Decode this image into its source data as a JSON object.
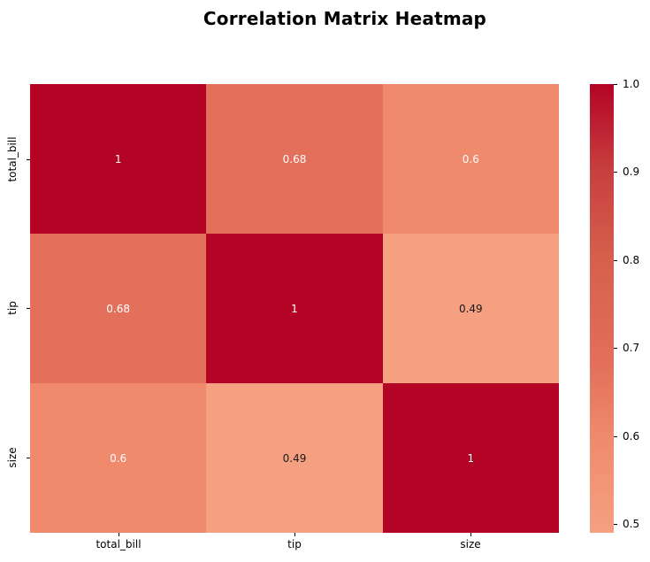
{
  "chart_data": {
    "type": "heatmap",
    "title": "Correlation Matrix Heatmap",
    "x_categories": [
      "total_bill",
      "tip",
      "size"
    ],
    "y_categories": [
      "total_bill",
      "tip",
      "size"
    ],
    "matrix": [
      [
        1.0,
        0.68,
        0.6
      ],
      [
        0.68,
        1.0,
        0.49
      ],
      [
        0.6,
        0.49,
        1.0
      ]
    ],
    "annotations": [
      [
        "1",
        "0.68",
        "0.6"
      ],
      [
        "0.68",
        "1",
        "0.49"
      ],
      [
        "0.6",
        "0.49",
        "1"
      ]
    ],
    "cell_colors": [
      [
        "#b40426",
        "#e2705a",
        "#ef8a6c"
      ],
      [
        "#e2705a",
        "#b40426",
        "#f5a081"
      ],
      [
        "#ef8a6c",
        "#f5a081",
        "#b40426"
      ]
    ],
    "annotation_text_colors": [
      [
        "#ffffff",
        "#ffffff",
        "#ffffff"
      ],
      [
        "#ffffff",
        "#ffffff",
        "#1a1a1a"
      ],
      [
        "#ffffff",
        "#1a1a1a",
        "#ffffff"
      ]
    ],
    "grid": false,
    "legend_position": "right",
    "colorbar": {
      "vmin": 0.49,
      "vmax": 1.0,
      "ticks": [
        "1.0",
        "0.9",
        "0.8",
        "0.7",
        "0.6",
        "0.5"
      ],
      "gradient_stops": [
        {
          "color": "#f5a081",
          "pos": 0
        },
        {
          "color": "#ef8a6c",
          "pos": 21.6
        },
        {
          "color": "#e2705a",
          "pos": 37.3
        },
        {
          "color": "#d6604d",
          "pos": 60.8
        },
        {
          "color": "#c8403f",
          "pos": 80.4
        },
        {
          "color": "#b40426",
          "pos": 100
        }
      ]
    }
  },
  "colors": {
    "background": "#ffffff",
    "max_cell": "#b40426",
    "min_cell": "#f5a081",
    "annotation_light": "#ffffff",
    "annotation_dark": "#1a1a1a",
    "tick": "#000000"
  }
}
